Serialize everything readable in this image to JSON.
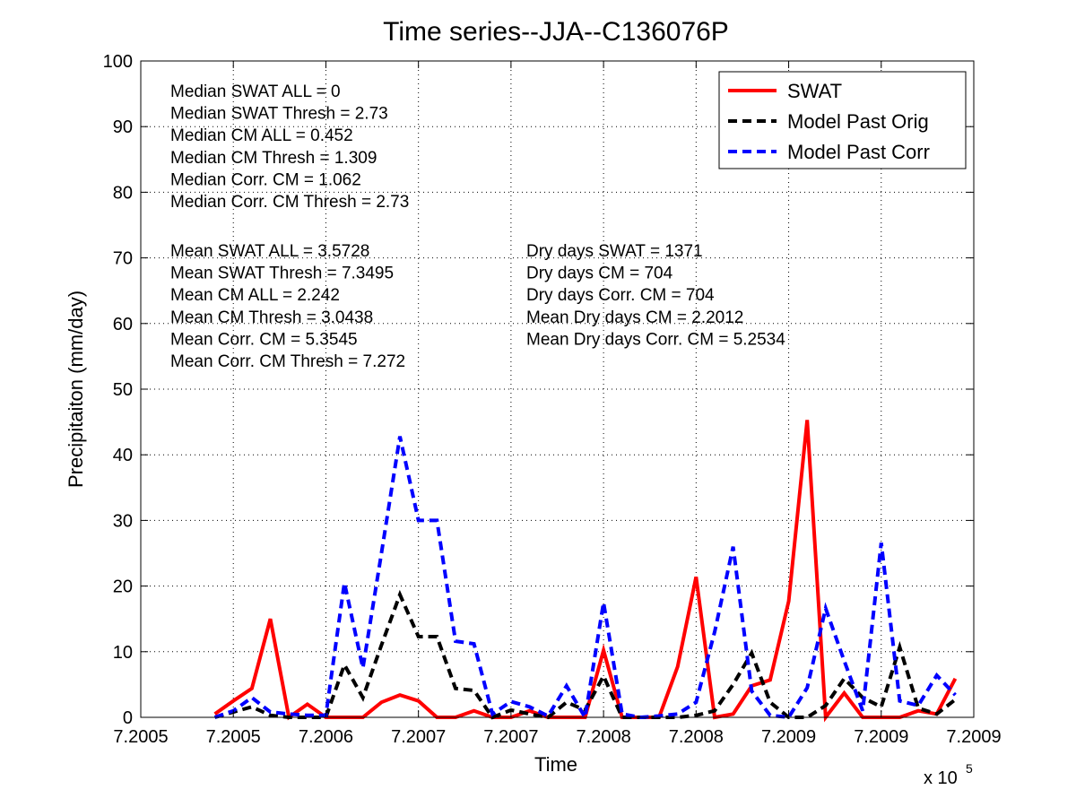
{
  "chart_data": {
    "type": "line",
    "title": "Time series--JJA--C136076P",
    "xlabel": "Time",
    "ylabel": "Precipitaiton (mm/day)",
    "x_multiplier": "x 10",
    "x_multiplier_exp": "5",
    "xlim": [
      0,
      9
    ],
    "ylim": [
      0,
      100
    ],
    "grid": true,
    "xticks": [
      0,
      1,
      2,
      3,
      4,
      5,
      6,
      7,
      8,
      9
    ],
    "xtick_labels": [
      "7.2005",
      "7.2005",
      "7.2006",
      "7.2007",
      "7.2007",
      "7.2008",
      "7.2008",
      "7.2009",
      "7.2009",
      "7.2009"
    ],
    "yticks": [
      0,
      10,
      20,
      30,
      40,
      50,
      60,
      70,
      80,
      90,
      100
    ],
    "ytick_labels": [
      "0",
      "10",
      "20",
      "30",
      "40",
      "50",
      "60",
      "70",
      "80",
      "90",
      "100"
    ],
    "x": [
      0.8,
      1.0,
      1.2,
      1.4,
      1.6,
      1.8,
      2.0,
      2.2,
      2.4,
      2.6,
      2.8,
      3.0,
      3.2,
      3.4,
      3.6,
      3.8,
      4.0,
      4.2,
      4.4,
      4.6,
      4.8,
      5.0,
      5.2,
      5.4,
      5.6,
      5.8,
      6.0,
      6.2,
      6.4,
      6.6,
      6.8,
      7.0,
      7.2,
      7.4,
      7.6,
      7.8,
      8.0,
      8.2,
      8.4,
      8.6,
      8.8
    ],
    "series": [
      {
        "name": "SWAT",
        "color": "#ff0000",
        "dash": "solid",
        "values": [
          0.5,
          2.5,
          4.4,
          15,
          0,
          2,
          0,
          0,
          0,
          2.3,
          3.4,
          2.5,
          0,
          0,
          1,
          0,
          0,
          1,
          0,
          0,
          0,
          10.2,
          0,
          0,
          0,
          7.7,
          21.4,
          0,
          0.5,
          4.8,
          5.7,
          17.7,
          45.3,
          0,
          3.7,
          0,
          0,
          0,
          1,
          0.5,
          5.9
        ]
      },
      {
        "name": "Model Past Orig",
        "color": "#000000",
        "dash": "dashed",
        "values": [
          0,
          0.8,
          1.6,
          0.3,
          0,
          0,
          0,
          8,
          3,
          11,
          18.7,
          12.3,
          12.3,
          4.4,
          4.1,
          0,
          1.1,
          0.5,
          0,
          2.3,
          1.1,
          6.3,
          0,
          0,
          0,
          0,
          0.3,
          1,
          5,
          9.8,
          2.3,
          0,
          0,
          1.8,
          5.9,
          3,
          1.6,
          10.7,
          1.4,
          0.5,
          2.7
        ]
      },
      {
        "name": "Model Past Corr",
        "color": "#0000ff",
        "dash": "dashed",
        "values": [
          0,
          1,
          3,
          0.8,
          0.5,
          0.3,
          0.3,
          20.5,
          7.5,
          25,
          42.8,
          30,
          30,
          11.6,
          11.2,
          0.5,
          2.4,
          1.6,
          0.2,
          4.8,
          0,
          17.5,
          0.5,
          0,
          0.2,
          0.5,
          2.3,
          13,
          26,
          4,
          0.3,
          0,
          4.5,
          16.6,
          8.6,
          1,
          26.6,
          2.5,
          1.8,
          6.4,
          3.4
        ]
      }
    ],
    "legend_position": "top-right",
    "annotations": {
      "median": [
        "Median SWAT ALL = 0",
        "Median SWAT Thresh = 2.73",
        "Median CM ALL = 0.452",
        "Median CM Thresh = 1.309",
        "Median Corr. CM = 1.062",
        "Median Corr. CM Thresh = 2.73"
      ],
      "mean": [
        "Mean SWAT ALL = 3.5728",
        "Mean SWAT Thresh = 7.3495",
        "Mean CM ALL = 2.242",
        "Mean CM Thresh = 3.0438",
        "Mean Corr. CM = 5.3545",
        "Mean Corr. CM Thresh = 7.272"
      ],
      "dry": [
        "Dry days SWAT = 1371",
        "Dry days CM = 704",
        "Dry days Corr. CM = 704",
        "Mean Dry days CM = 2.2012",
        "Mean Dry days Corr. CM = 5.2534"
      ]
    }
  }
}
